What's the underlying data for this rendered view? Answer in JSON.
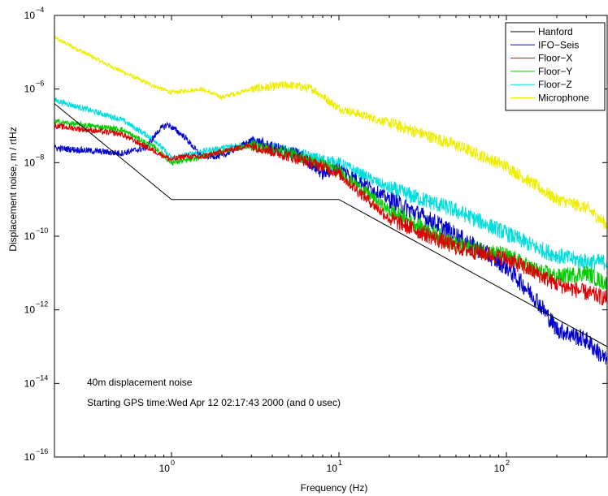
{
  "chart_data": {
    "type": "line",
    "xlabel": "Frequency (Hz)",
    "ylabel": "Displacement noise, m / rtHz",
    "xscale": "log",
    "yscale": "log",
    "xlim": [
      0.2,
      400
    ],
    "ylim": [
      1e-16,
      0.0001
    ],
    "grid": false,
    "legend_position": "top-right",
    "x_ticks": [
      {
        "value": 1,
        "base": "10",
        "exp": "0"
      },
      {
        "value": 10,
        "base": "10",
        "exp": "1"
      },
      {
        "value": 100,
        "base": "10",
        "exp": "2"
      }
    ],
    "y_ticks": [
      {
        "value": 1e-16,
        "base": "10",
        "exp": "−16"
      },
      {
        "value": 1e-14,
        "base": "10",
        "exp": "−14"
      },
      {
        "value": 1e-12,
        "base": "10",
        "exp": "−12"
      },
      {
        "value": 1e-10,
        "base": "10",
        "exp": "−10"
      },
      {
        "value": 1e-08,
        "base": "10",
        "exp": "−8"
      },
      {
        "value": 1e-06,
        "base": "10",
        "exp": "−6"
      },
      {
        "value": 0.0001,
        "base": "10",
        "exp": "−4"
      }
    ],
    "annotations": [
      "40m displacement noise",
      "Starting GPS time:Wed Apr 12 02:17:43 2000 (and 0 usec)"
    ],
    "series": [
      {
        "name": "Hanford",
        "color": "#000000",
        "noise": 0,
        "points": [
          [
            0.2,
            4e-07
          ],
          [
            1,
            1e-09
          ],
          [
            10,
            1e-09
          ],
          [
            400,
            1e-13
          ]
        ]
      },
      {
        "name": "IFO−Seis",
        "color": "#0000cc",
        "noise": 0.5,
        "points": [
          [
            0.2,
            2.5e-08
          ],
          [
            0.5,
            1.8e-08
          ],
          [
            0.7,
            2.5e-08
          ],
          [
            0.85,
            8e-08
          ],
          [
            0.95,
            1.1e-07
          ],
          [
            1.2,
            5e-08
          ],
          [
            1.5,
            1.5e-08
          ],
          [
            2,
            1.5e-08
          ],
          [
            3,
            4e-08
          ],
          [
            4,
            2.5e-08
          ],
          [
            5,
            2e-08
          ],
          [
            6,
            1.5e-08
          ],
          [
            8,
            5e-09
          ],
          [
            10,
            7e-09
          ],
          [
            20,
            1e-09
          ],
          [
            40,
            2e-10
          ],
          [
            100,
            1.5e-11
          ],
          [
            150,
            2e-12
          ],
          [
            200,
            3e-13
          ],
          [
            300,
            1.5e-13
          ],
          [
            400,
            4e-14
          ]
        ]
      },
      {
        "name": "Floor−X",
        "color": "#dd0000",
        "noise": 0.45,
        "points": [
          [
            0.2,
            1e-07
          ],
          [
            0.5,
            6e-08
          ],
          [
            0.8,
            2e-08
          ],
          [
            1,
            1.2e-08
          ],
          [
            1.2,
            1.5e-08
          ],
          [
            1.5,
            1.4e-08
          ],
          [
            2,
            2e-08
          ],
          [
            3,
            3e-08
          ],
          [
            5,
            1.5e-08
          ],
          [
            8,
            8e-09
          ],
          [
            10,
            5e-09
          ],
          [
            20,
            3e-10
          ],
          [
            50,
            5e-11
          ],
          [
            100,
            2.5e-11
          ],
          [
            150,
            1e-11
          ],
          [
            200,
            5e-12
          ],
          [
            400,
            2e-12
          ]
        ]
      },
      {
        "name": "Floor−Y",
        "color": "#00cc00",
        "noise": 0.45,
        "points": [
          [
            0.2,
            1.3e-07
          ],
          [
            0.5,
            8e-08
          ],
          [
            0.8,
            2.5e-08
          ],
          [
            1,
            1e-08
          ],
          [
            1.3,
            1.2e-08
          ],
          [
            1.8,
            1.8e-08
          ],
          [
            3,
            3e-08
          ],
          [
            5,
            1.8e-08
          ],
          [
            8,
            9e-09
          ],
          [
            10,
            6e-09
          ],
          [
            20,
            5e-10
          ],
          [
            50,
            6e-11
          ],
          [
            100,
            3e-11
          ],
          [
            150,
            1.2e-11
          ],
          [
            200,
            8e-12
          ],
          [
            300,
            1e-11
          ],
          [
            400,
            5e-12
          ]
        ]
      },
      {
        "name": "Floor−Z",
        "color": "#00dddd",
        "noise": 0.45,
        "points": [
          [
            0.2,
            5e-07
          ],
          [
            0.5,
            1.5e-07
          ],
          [
            0.8,
            4e-08
          ],
          [
            1,
            1.3e-08
          ],
          [
            1.5,
            2e-08
          ],
          [
            2,
            2.5e-08
          ],
          [
            3,
            3.5e-08
          ],
          [
            5,
            2e-08
          ],
          [
            8,
            1.2e-08
          ],
          [
            10,
            1e-08
          ],
          [
            20,
            2e-09
          ],
          [
            50,
            5e-10
          ],
          [
            100,
            1.2e-10
          ],
          [
            150,
            5e-11
          ],
          [
            200,
            3e-11
          ],
          [
            300,
            2e-11
          ],
          [
            400,
            2e-11
          ]
        ]
      },
      {
        "name": "Microphone",
        "color": "#eeee00",
        "noise": 0.35,
        "points": [
          [
            0.2,
            2.5e-05
          ],
          [
            0.4,
            5e-06
          ],
          [
            0.7,
            1.5e-06
          ],
          [
            1,
            8e-07
          ],
          [
            1.5,
            1e-06
          ],
          [
            2,
            6e-07
          ],
          [
            3,
            1e-06
          ],
          [
            5,
            1.3e-06
          ],
          [
            7,
            1e-06
          ],
          [
            10,
            3e-07
          ],
          [
            20,
            1.2e-07
          ],
          [
            50,
            3e-08
          ],
          [
            100,
            8e-09
          ],
          [
            200,
            1e-09
          ],
          [
            300,
            6e-10
          ],
          [
            400,
            2e-10
          ]
        ]
      }
    ]
  }
}
